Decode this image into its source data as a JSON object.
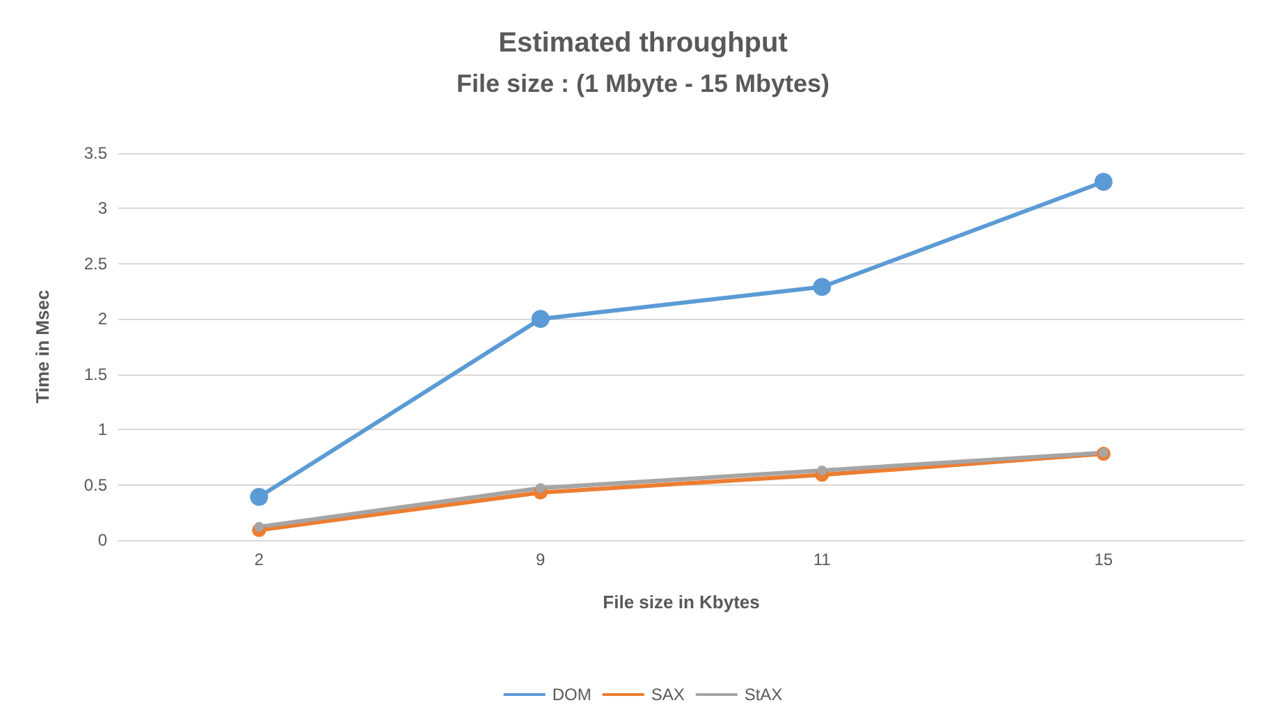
{
  "chart_data": {
    "type": "line",
    "title": "Estimated throughput",
    "subtitle": "File size : (1 Mbyte - 15 Mbytes)",
    "xlabel": "File size in Kbytes",
    "ylabel": "Time in Msec",
    "categories": [
      "2",
      "9",
      "11",
      "15"
    ],
    "series": [
      {
        "name": "DOM",
        "color": "#5b9bd5",
        "values": [
          0.39,
          2.0,
          2.29,
          3.24
        ]
      },
      {
        "name": "SAX",
        "color": "#ed7d31",
        "values": [
          0.09,
          0.43,
          0.59,
          0.78
        ]
      },
      {
        "name": "StAX",
        "color": "#a5a5a5",
        "values": [
          0.12,
          0.47,
          0.63,
          0.79
        ]
      }
    ],
    "ylim": [
      0,
      3.5
    ],
    "yticks": [
      0,
      0.5,
      1,
      1.5,
      2,
      2.5,
      3,
      3.5
    ],
    "grid": "y",
    "legend": "bottom",
    "marker": "circle",
    "line_style": "solid"
  }
}
